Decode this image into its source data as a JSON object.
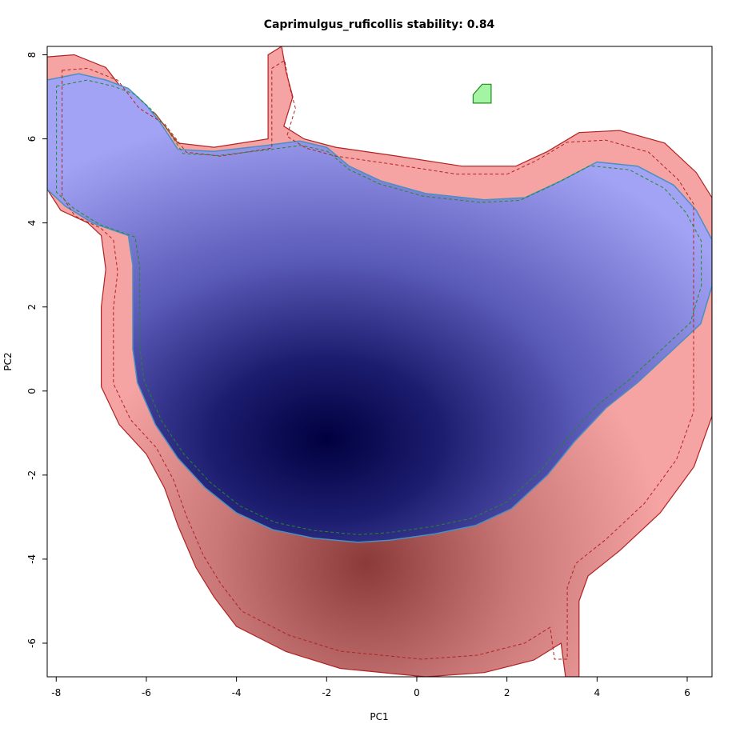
{
  "chart_data": {
    "type": "heatmap",
    "title": "Caprimulgus_ruficollis stability: 0.84",
    "xlabel": "PC1",
    "ylabel": "PC2",
    "xlim": [
      -8.2,
      6.55
    ],
    "ylim": [
      -6.8,
      8.2
    ],
    "x_ticks": [
      -8,
      -6,
      -4,
      -2,
      0,
      2,
      4,
      6
    ],
    "y_ticks": [
      -6,
      -4,
      -2,
      0,
      2,
      4,
      6,
      8
    ],
    "grid": false,
    "colors": {
      "stable_overlap": "#a3a3f5",
      "stable_overlap_dense": "#000040",
      "expansion": "#f5a3a3",
      "expansion_dense": "#8b3a3a",
      "unfilling": "#a3f5a3",
      "native_contour": "#228b22",
      "invasive_contour": "#b22222",
      "overlap_outline": "#4a90c0"
    },
    "regions": [
      {
        "label": "expansion",
        "outline": [
          [
            -8.2,
            7.95
          ],
          [
            -7.6,
            8.0
          ],
          [
            -6.9,
            7.7
          ],
          [
            -6.4,
            7.0
          ],
          [
            -5.8,
            6.6
          ],
          [
            -5.3,
            5.9
          ],
          [
            -4.5,
            5.8
          ],
          [
            -3.3,
            6.0
          ],
          [
            -3.3,
            8.0
          ],
          [
            -3.0,
            8.2
          ],
          [
            -2.9,
            7.6
          ],
          [
            -2.75,
            7.0
          ],
          [
            -2.95,
            6.3
          ],
          [
            -2.5,
            6.0
          ],
          [
            -1.8,
            5.8
          ],
          [
            -0.5,
            5.6
          ],
          [
            1.0,
            5.35
          ],
          [
            2.2,
            5.35
          ],
          [
            2.9,
            5.7
          ],
          [
            3.6,
            6.15
          ],
          [
            4.5,
            6.2
          ],
          [
            5.5,
            5.9
          ],
          [
            6.2,
            5.2
          ],
          [
            6.55,
            4.6
          ],
          [
            6.55,
            -0.6
          ],
          [
            6.15,
            -1.8
          ],
          [
            5.4,
            -2.9
          ],
          [
            4.5,
            -3.8
          ],
          [
            3.8,
            -4.4
          ],
          [
            3.6,
            -5.0
          ],
          [
            3.6,
            -6.8
          ],
          [
            3.3,
            -6.8
          ],
          [
            3.2,
            -6.0
          ],
          [
            2.6,
            -6.4
          ],
          [
            1.5,
            -6.7
          ],
          [
            0.2,
            -6.8
          ],
          [
            -1.7,
            -6.6
          ],
          [
            -2.9,
            -6.2
          ],
          [
            -4.0,
            -5.6
          ],
          [
            -4.5,
            -4.9
          ],
          [
            -4.9,
            -4.2
          ],
          [
            -5.3,
            -3.2
          ],
          [
            -5.6,
            -2.3
          ],
          [
            -6.0,
            -1.5
          ],
          [
            -6.6,
            -0.8
          ],
          [
            -7.0,
            0.1
          ],
          [
            -7.0,
            2.0
          ],
          [
            -6.9,
            2.9
          ],
          [
            -7.0,
            3.7
          ],
          [
            -7.3,
            4.0
          ],
          [
            -7.9,
            4.3
          ],
          [
            -8.2,
            4.8
          ]
        ]
      },
      {
        "label": "stable",
        "outline": [
          [
            -8.2,
            7.4
          ],
          [
            -7.5,
            7.55
          ],
          [
            -6.9,
            7.4
          ],
          [
            -6.4,
            7.2
          ],
          [
            -6.0,
            6.8
          ],
          [
            -5.7,
            6.4
          ],
          [
            -5.3,
            5.75
          ],
          [
            -4.5,
            5.7
          ],
          [
            -3.3,
            5.85
          ],
          [
            -2.6,
            5.95
          ],
          [
            -2.0,
            5.8
          ],
          [
            -1.5,
            5.35
          ],
          [
            -0.8,
            5.0
          ],
          [
            0.2,
            4.7
          ],
          [
            1.5,
            4.55
          ],
          [
            2.4,
            4.6
          ],
          [
            3.2,
            5.0
          ],
          [
            4.0,
            5.45
          ],
          [
            4.9,
            5.35
          ],
          [
            5.7,
            4.9
          ],
          [
            6.2,
            4.3
          ],
          [
            6.55,
            3.6
          ],
          [
            6.55,
            2.5
          ],
          [
            6.3,
            1.6
          ],
          [
            5.7,
            1.0
          ],
          [
            4.9,
            0.2
          ],
          [
            4.2,
            -0.4
          ],
          [
            3.5,
            -1.2
          ],
          [
            2.9,
            -2.0
          ],
          [
            2.1,
            -2.8
          ],
          [
            1.3,
            -3.2
          ],
          [
            0.4,
            -3.4
          ],
          [
            -0.6,
            -3.55
          ],
          [
            -1.3,
            -3.6
          ],
          [
            -2.3,
            -3.5
          ],
          [
            -3.2,
            -3.3
          ],
          [
            -4.0,
            -2.9
          ],
          [
            -4.7,
            -2.3
          ],
          [
            -5.3,
            -1.6
          ],
          [
            -5.8,
            -0.8
          ],
          [
            -6.2,
            0.2
          ],
          [
            -6.3,
            1.0
          ],
          [
            -6.3,
            3.0
          ],
          [
            -6.4,
            3.7
          ],
          [
            -7.2,
            4.0
          ],
          [
            -7.8,
            4.4
          ],
          [
            -8.2,
            4.8
          ]
        ]
      },
      {
        "label": "unfilling",
        "outline": [
          [
            1.25,
            7.05
          ],
          [
            1.45,
            7.3
          ],
          [
            1.65,
            7.3
          ],
          [
            1.65,
            6.85
          ],
          [
            1.25,
            6.85
          ]
        ]
      }
    ],
    "density_peaks": [
      {
        "series": "stable",
        "x": -1.5,
        "y": -1.5
      },
      {
        "series": "expansion",
        "x": -1.5,
        "y": -4.2
      }
    ]
  }
}
